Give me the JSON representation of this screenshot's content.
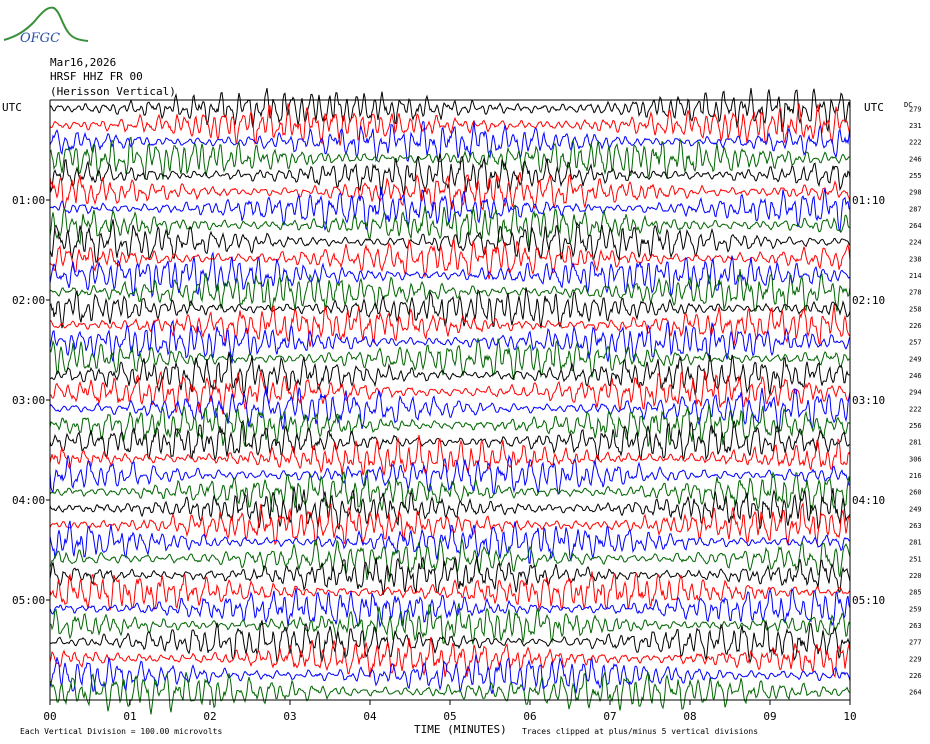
{
  "header": {
    "logo_text": "OFGC",
    "date": "Mar16,2026",
    "station": "HRSF HHZ FR 00",
    "location": "(Herisson Vertical)"
  },
  "chart_data": {
    "type": "line",
    "title": "",
    "left_axis_label": "UTC",
    "right_axis_label": "UTC",
    "dc_label": "DC",
    "xlabel": "TIME (MINUTES)",
    "x_ticks": [
      "00",
      "01",
      "02",
      "03",
      "04",
      "05",
      "06",
      "07",
      "08",
      "09",
      "10"
    ],
    "xlim": [
      0,
      10
    ],
    "rows_per_hour": 6,
    "minutes_per_row": 10,
    "trace_colors": [
      "#000000",
      "#ff0000",
      "#0000ff",
      "#006400"
    ],
    "left_hour_labels": [
      "01:00",
      "02:00",
      "03:00",
      "04:00",
      "05:00"
    ],
    "right_hour_labels": [
      "01:10",
      "02:10",
      "03:10",
      "04:10",
      "05:10"
    ],
    "dc_offsets": [
      279,
      231,
      222,
      246,
      255,
      298,
      287,
      264,
      224,
      238,
      214,
      278,
      258,
      226,
      257,
      249,
      246,
      294,
      222,
      256,
      281,
      306,
      216,
      260,
      249,
      263,
      281,
      251,
      220,
      285,
      259,
      263,
      277,
      229,
      226,
      264
    ],
    "trace_amplitude_divisions": 5,
    "footer_left": "Each Vertical Division =  100.00 microvolts",
    "footer_right": "Traces clipped at plus/minus 5 vertical divisions"
  }
}
